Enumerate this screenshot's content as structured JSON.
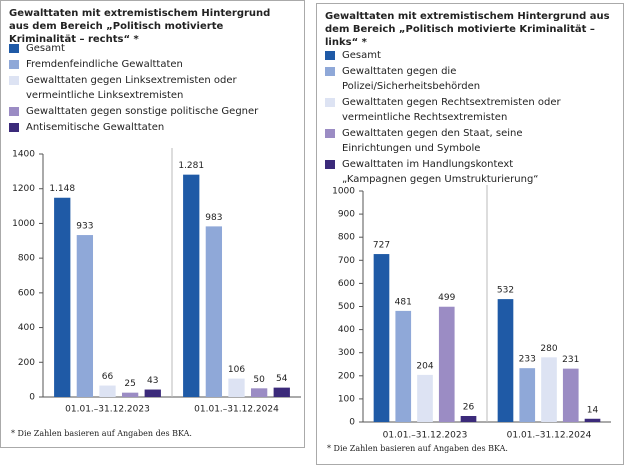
{
  "chart_data": [
    {
      "type": "bar",
      "title": "Gewalttaten mit extremistischem Hintergrund aus dem Bereich „Politisch motivierte Kriminalität – rechts“ *",
      "categories": [
        "01.01.–31.12.2023",
        "01.01.–31.12.2024"
      ],
      "series": [
        {
          "name": "Gesamt",
          "color": "#1f5aa6",
          "values": [
            1148,
            1281
          ],
          "value_labels": [
            "1.148",
            "1.281"
          ]
        },
        {
          "name": "Fremdenfeindliche Gewalttaten",
          "color": "#8fa8d8",
          "values": [
            933,
            983
          ]
        },
        {
          "name": "Gewalttaten gegen Linksextremisten oder vermeintliche Linksextremisten",
          "color": "#dde3f3",
          "values": [
            66,
            106
          ]
        },
        {
          "name": "Gewalttaten gegen sonstige politische Gegner",
          "color": "#9b8cc4",
          "values": [
            25,
            50
          ]
        },
        {
          "name": "Antisemitische Gewalttaten",
          "color": "#3b2a7a",
          "values": [
            43,
            54
          ]
        }
      ],
      "ylim": [
        0,
        1400
      ],
      "yticks": [
        0,
        200,
        400,
        600,
        800,
        1000,
        1200,
        1400
      ],
      "grid": false,
      "footnote": "* Die Zahlen basieren auf Angaben des BKA."
    },
    {
      "type": "bar",
      "title": "Gewalttaten mit extremistischem Hintergrund aus dem Bereich „Politisch motivierte Kriminalität – links“ *",
      "categories": [
        "01.01.–31.12.2023",
        "01.01.–31.12.2024"
      ],
      "series": [
        {
          "name": "Gesamt",
          "color": "#1f5aa6",
          "values": [
            727,
            532
          ]
        },
        {
          "name": "Gewalttaten gegen die Polizei/Sicherheitsbehörden",
          "color": "#8fa8d8",
          "values": [
            481,
            233
          ]
        },
        {
          "name": "Gewalttaten gegen Rechtsextremisten oder vermeintliche Rechtsextremisten",
          "color": "#dde3f3",
          "values": [
            204,
            280
          ]
        },
        {
          "name": "Gewalttaten gegen den Staat, seine Einrichtungen und Symbole",
          "color": "#9b8cc4",
          "values": [
            499,
            231
          ]
        },
        {
          "name": "Gewalttaten im Handlungskontext „Kampagnen gegen Umstrukturierung“",
          "color": "#3b2a7a",
          "values": [
            26,
            14
          ]
        }
      ],
      "ylim": [
        0,
        1000
      ],
      "yticks": [
        0,
        100,
        200,
        300,
        400,
        500,
        600,
        700,
        800,
        900,
        1000
      ],
      "grid": false,
      "footnote": "* Die Zahlen basieren auf Angaben des BKA."
    }
  ]
}
